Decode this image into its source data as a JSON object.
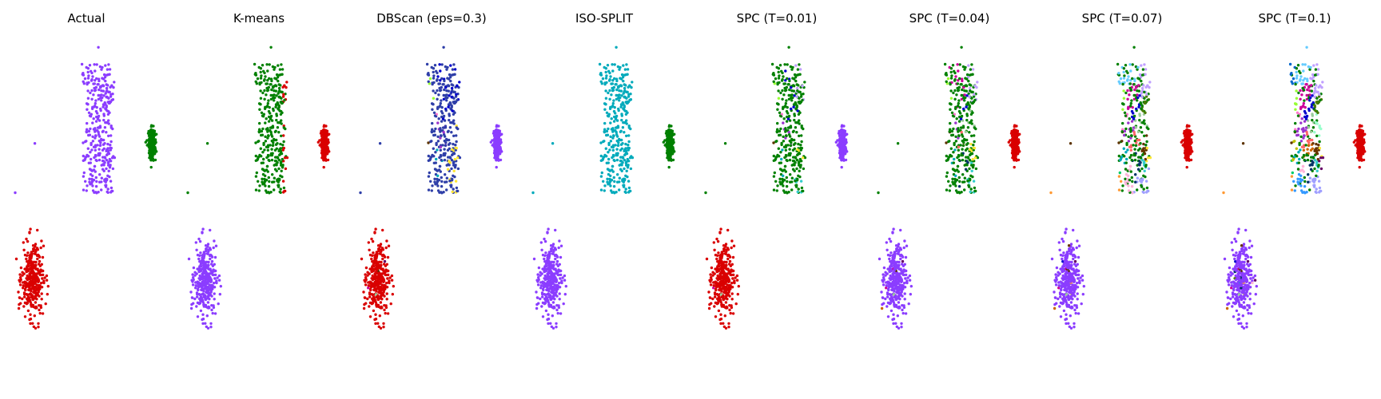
{
  "chart_data": {
    "type": "scatter",
    "axes_visible": false,
    "grid": false,
    "legend": "none",
    "xlim": [
      -3.3,
      4.0
    ],
    "ylim": [
      -3.8,
      3.0
    ],
    "groups": [
      {
        "name": "big",
        "center": [
          0.9,
          1.2
        ],
        "spread": [
          0.85,
          1.05
        ],
        "count": 330,
        "outliers": [
          [
            0.9,
            2.85
          ],
          [
            -2.9,
            -0.1
          ],
          [
            -2.0,
            0.9
          ]
        ]
      },
      {
        "name": "small",
        "center": [
          3.35,
          0.9
        ],
        "spread": [
          0.14,
          0.28
        ],
        "count": 250,
        "outliers": []
      },
      {
        "name": "bottom",
        "center": [
          -2.1,
          -1.9
        ],
        "spread": [
          0.45,
          0.65
        ],
        "count": 330,
        "outliers": []
      }
    ],
    "panels": [
      {
        "title": "Actual",
        "colors": {
          "big": "#8b3dff",
          "small": "#008000",
          "bottom": "#d90000"
        },
        "extra_clusters": 0,
        "mix": 0
      },
      {
        "title": "K-means",
        "colors": {
          "big": "#008000",
          "small": "#d90000",
          "bottom": "#8b3dff"
        },
        "extra_clusters": 0,
        "mix": 0,
        "leak": {
          "from": "big",
          "to": "small",
          "region": "right"
        }
      },
      {
        "title": "DBScan (eps=0.3)",
        "colors": {
          "big": "#2f3fa8",
          "small": "#8b3dff",
          "bottom": "#d90000"
        },
        "extra_clusters": 8,
        "mix": 0.12
      },
      {
        "title": "ISO-SPLIT",
        "colors": {
          "big": "#00aabb",
          "small": "#008000",
          "bottom": "#8b3dff"
        },
        "extra_clusters": 0,
        "mix": 0
      },
      {
        "title": "SPC (T=0.01)",
        "colors": {
          "big": "#008000",
          "small": "#8b3dff",
          "bottom": "#d90000"
        },
        "extra_clusters": 10,
        "mix": 0.06
      },
      {
        "title": "SPC (T=0.04)",
        "colors": {
          "big": "#008000",
          "small": "#d90000",
          "bottom": "#8b3dff"
        },
        "extra_clusters": 14,
        "mix": 0.18
      },
      {
        "title": "SPC (T=0.07)",
        "colors": {
          "big": "#008000",
          "small": "#d90000",
          "bottom": "#8b3dff"
        },
        "extra_clusters": 22,
        "mix": 0.55
      },
      {
        "title": "SPC (T=0.1)",
        "colors": {
          "big": "#008000",
          "small": "#d90000",
          "bottom": "#8b3dff"
        },
        "extra_clusters": 28,
        "mix": 0.75
      }
    ],
    "extra_palette": [
      "#99ff33",
      "#ff9933",
      "#00aabb",
      "#ff77cc",
      "#5c3300",
      "#0000cc",
      "#9933cc",
      "#ffe633",
      "#33cccc",
      "#c0a0ff",
      "#99cc99",
      "#cc0099",
      "#003366",
      "#ff6666",
      "#66ccff",
      "#800040",
      "#b8860b",
      "#00cc66",
      "#a0a0ff",
      "#663300",
      "#ffb3d9",
      "#4d7a00",
      "#0066cc",
      "#cc6600",
      "#99ffcc",
      "#660066",
      "#c0c000",
      "#3399ff"
    ]
  }
}
